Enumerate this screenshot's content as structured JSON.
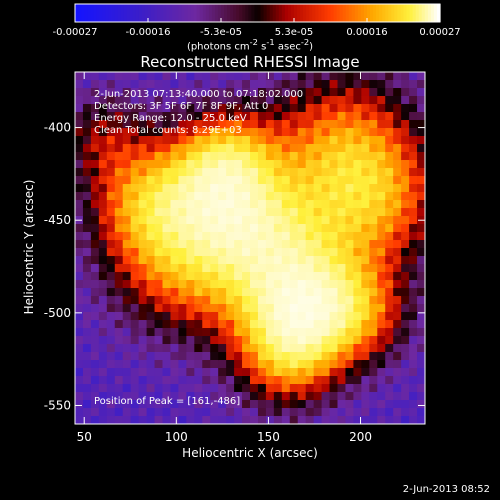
{
  "chart_data": {
    "type": "heatmap",
    "title": "Reconstructed RHESSI Image",
    "xlabel": "Heliocentric X (arcsec)",
    "ylabel": "Heliocentric Y (arcsec)",
    "xlim": [
      45,
      235
    ],
    "ylim": [
      -560,
      -370
    ],
    "xticks": [
      50,
      100,
      150,
      200
    ],
    "yticks": [
      -400,
      -450,
      -500,
      -550
    ],
    "colorbar": {
      "min": -0.00027,
      "max": 0.00027,
      "ticks": [
        "-0.00027",
        "-0.00016",
        "-5.3e-05",
        "5.3e-05",
        "0.00016",
        "0.00027"
      ],
      "units": "(photons cm",
      "units_exp1": "-2",
      "units_mid": " s",
      "units_exp2": "-1",
      "units_mid2": " asec",
      "units_exp3": "-2",
      "units_end": ")"
    },
    "info_lines": [
      "2-Jun-2013 07:13:40.000 to 07:18:02.000",
      "Detectors: 3F 5F 6F 7F 8F 9F, Att 0",
      "Energy Range: 12.0 - 25.0 keV",
      "Clean     Total counts: 8.29E+03"
    ],
    "peak_label": "Position of Peak = [161,-486]",
    "peak": [
      161,
      -486
    ],
    "grid": false,
    "colormap": "blue-purple-red-yellow-white"
  },
  "timestamp": "2-Jun-2013 08:52",
  "colors": {
    "background": "#000000",
    "text": "#ffffff"
  }
}
